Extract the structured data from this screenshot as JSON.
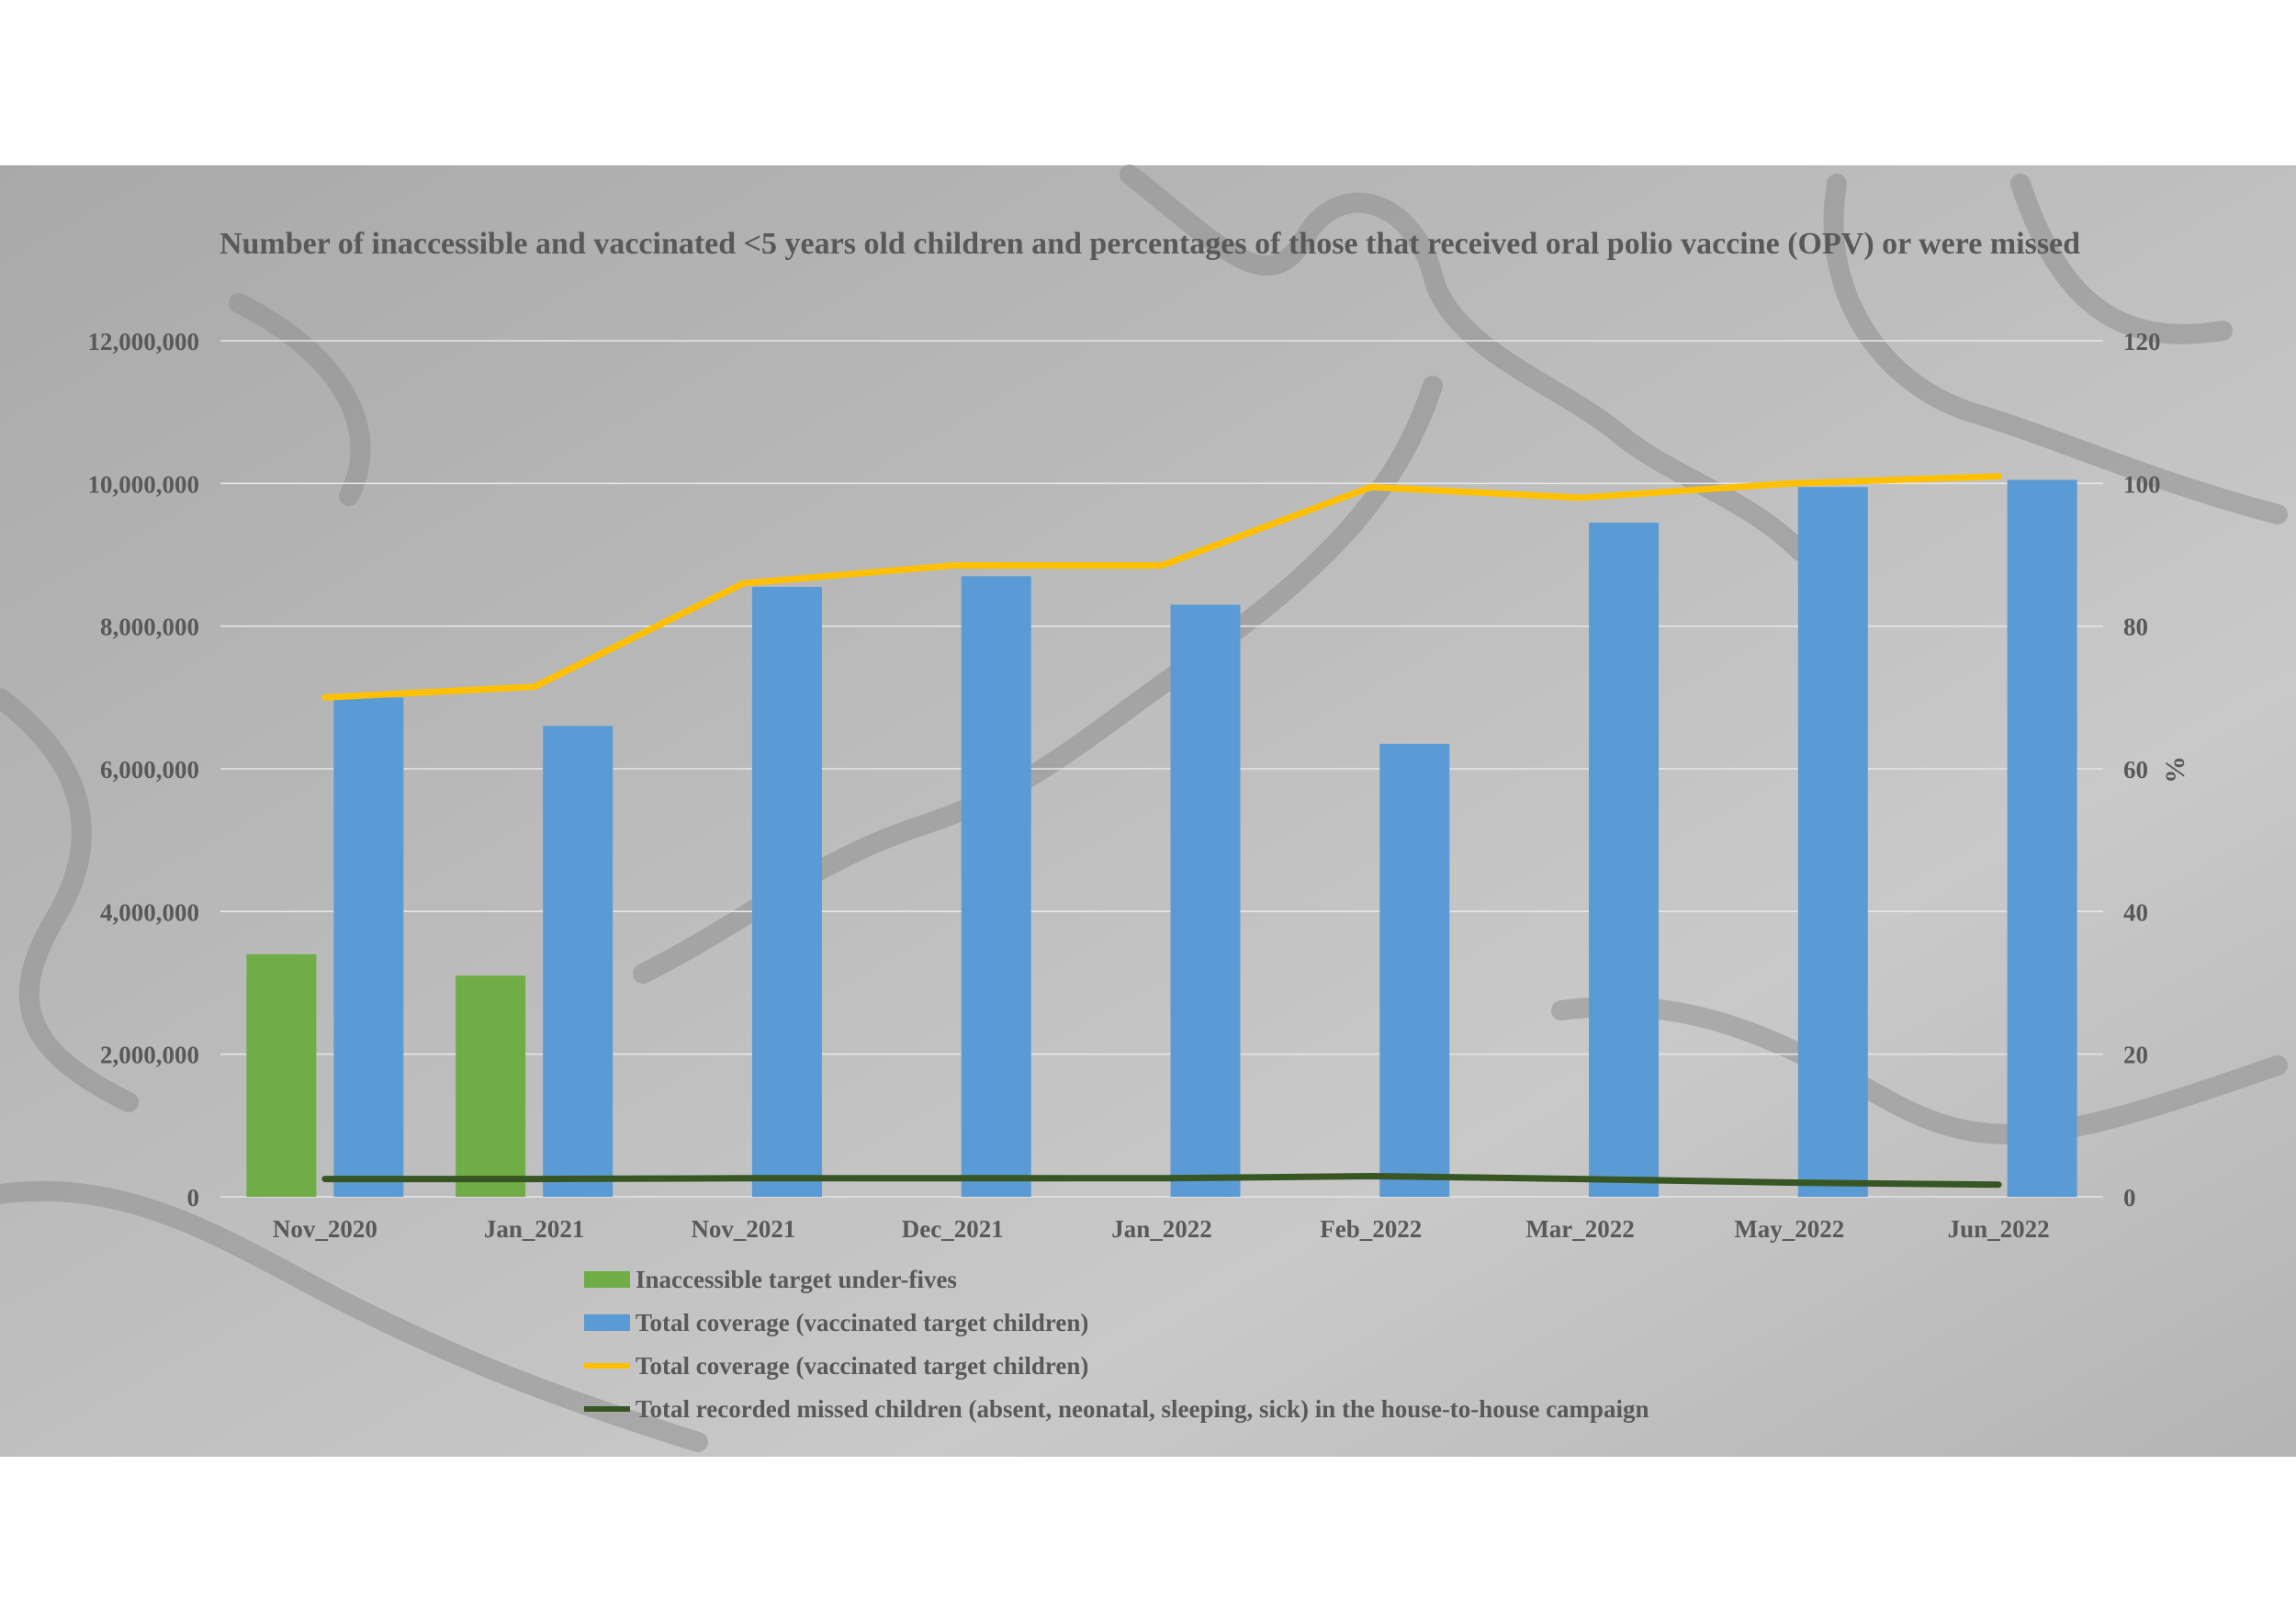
{
  "chart_data": {
    "type": "bar",
    "title": "Number of inaccessible and vaccinated <5 years old children and percentages of those that received oral polio vaccine (OPV) or were missed",
    "ylabel": "",
    "y2label": "%",
    "ylim": [
      0,
      12000000
    ],
    "y2lim": [
      0,
      120
    ],
    "y_ticks": [
      "0",
      "2,000,000",
      "4,000,000",
      "6,000,000",
      "8,000,000",
      "10,000,000",
      "12,000,000"
    ],
    "y2_ticks": [
      "0",
      "20",
      "40",
      "60",
      "80",
      "100",
      "120"
    ],
    "grid": true,
    "legend_position": "bottom",
    "categories": [
      "Nov_2020",
      "Jan_2021",
      "Nov_2021",
      "Dec_2021",
      "Jan_2022",
      "Feb_2022",
      "Mar_2022",
      "May_2022",
      "Jun_2022"
    ],
    "series": [
      {
        "name": "Inaccessible target under-fives",
        "kind": "bar",
        "axis": "left",
        "color": "#70AD47",
        "values": [
          3400000,
          3100000,
          null,
          null,
          null,
          null,
          null,
          null,
          null
        ]
      },
      {
        "name": "Total coverage (vaccinated target children)",
        "kind": "bar",
        "axis": "left",
        "color": "#5B9BD5",
        "values": [
          7000000,
          6600000,
          8550000,
          8700000,
          8300000,
          6350000,
          9450000,
          9950000,
          10050000
        ]
      },
      {
        "name": "Total coverage (vaccinated target children)",
        "kind": "line",
        "axis": "right",
        "color": "#FFC000",
        "values": [
          70,
          71.5,
          86,
          88.5,
          88.5,
          99.5,
          98,
          100,
          101
        ]
      },
      {
        "name": "Total recorded missed children (absent, neonatal, sleeping, sick) in the house-to-house campaign",
        "kind": "line",
        "axis": "right",
        "color": "#375623",
        "values": [
          2.5,
          2.5,
          2.6,
          2.6,
          2.6,
          2.9,
          2.5,
          2,
          1.7
        ]
      }
    ]
  }
}
